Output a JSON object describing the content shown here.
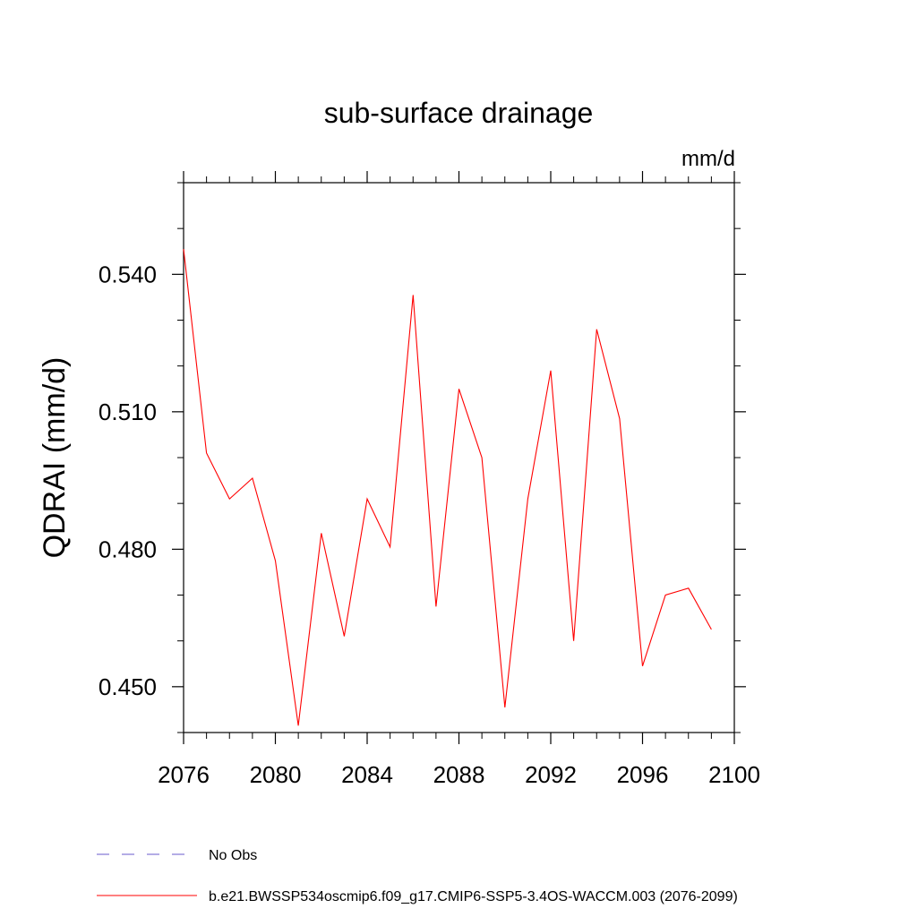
{
  "chart_data": {
    "type": "line",
    "title": "sub-surface drainage",
    "units_label": "mm/d",
    "ylabel": "QDRAI  (mm/d)",
    "xlabel": "",
    "xlim": [
      2076,
      2100
    ],
    "ylim": [
      0.44,
      0.56
    ],
    "x_ticks": [
      2076,
      2080,
      2084,
      2088,
      2092,
      2096,
      2100
    ],
    "x_tick_labels": [
      "2076",
      "2080",
      "2084",
      "2088",
      "2092",
      "2096",
      "2100"
    ],
    "x_minor_ticks": [
      2077,
      2078,
      2079,
      2081,
      2082,
      2083,
      2085,
      2086,
      2087,
      2089,
      2090,
      2091,
      2093,
      2094,
      2095,
      2097,
      2098,
      2099
    ],
    "y_ticks": [
      0.45,
      0.48,
      0.51,
      0.54
    ],
    "y_tick_labels": [
      "0.450",
      "0.480",
      "0.510",
      "0.540"
    ],
    "y_minor_ticks": [
      0.44,
      0.46,
      0.47,
      0.49,
      0.5,
      0.52,
      0.53,
      0.55,
      0.56
    ],
    "grid": false,
    "series": [
      {
        "name": "b.e21.BWSSP534oscmip6.f09_g17.CMIP6-SSP5-3.4OS-WACCM.003 (2076-2099)",
        "color": "#ff0000",
        "style": "solid",
        "x": [
          2076,
          2077,
          2078,
          2079,
          2080,
          2081,
          2082,
          2083,
          2084,
          2085,
          2086,
          2087,
          2088,
          2089,
          2090,
          2091,
          2092,
          2093,
          2094,
          2095,
          2096,
          2097,
          2098,
          2099
        ],
        "values": [
          0.5455,
          0.501,
          0.491,
          0.4955,
          0.4775,
          0.4415,
          0.4835,
          0.461,
          0.491,
          0.4805,
          0.5355,
          0.4675,
          0.515,
          0.5,
          0.4455,
          0.491,
          0.519,
          0.46,
          0.528,
          0.5085,
          0.4545,
          0.47,
          0.4715,
          0.4625
        ]
      }
    ],
    "legend": [
      {
        "label": "No Obs",
        "color": "#6a5acd",
        "style": "dashed"
      },
      {
        "label": "b.e21.BWSSP534oscmip6.f09_g17.CMIP6-SSP5-3.4OS-WACCM.003 (2076-2099)",
        "color": "#ff0000",
        "style": "solid"
      }
    ],
    "legend_position": "bottom-left"
  }
}
